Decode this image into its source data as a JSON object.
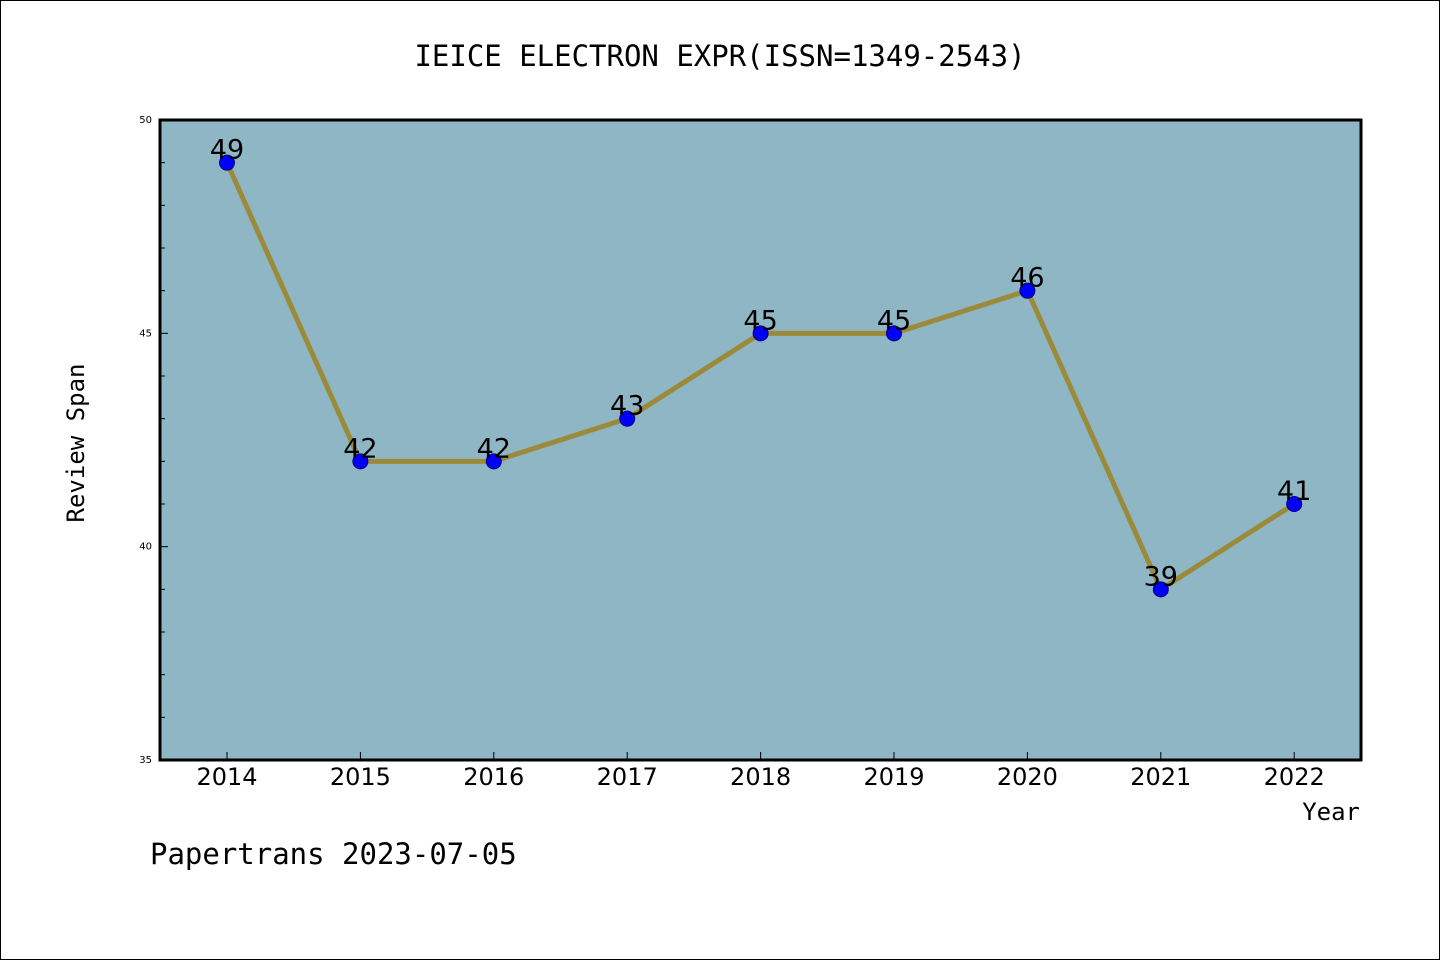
{
  "chart_data": {
    "type": "line",
    "title": "IEICE ELECTRON EXPR(ISSN=1349-2543)",
    "xlabel": "Year",
    "ylabel": "Review Span",
    "x": [
      "2014",
      "2015",
      "2016",
      "2017",
      "2018",
      "2019",
      "2020",
      "2021",
      "2022"
    ],
    "values": [
      49,
      42,
      42,
      43,
      45,
      45,
      46,
      39,
      41
    ],
    "ylim": [
      35,
      50
    ],
    "y_ticks": [
      35,
      40,
      45,
      50
    ],
    "grid": false,
    "legend": "none",
    "footer": "Papertrans 2023-07-05",
    "colors": {
      "plot_background": "#8fb6c4",
      "line": "#9a8a3a",
      "marker": "#0000ff",
      "marker_edge": "#000080"
    }
  }
}
